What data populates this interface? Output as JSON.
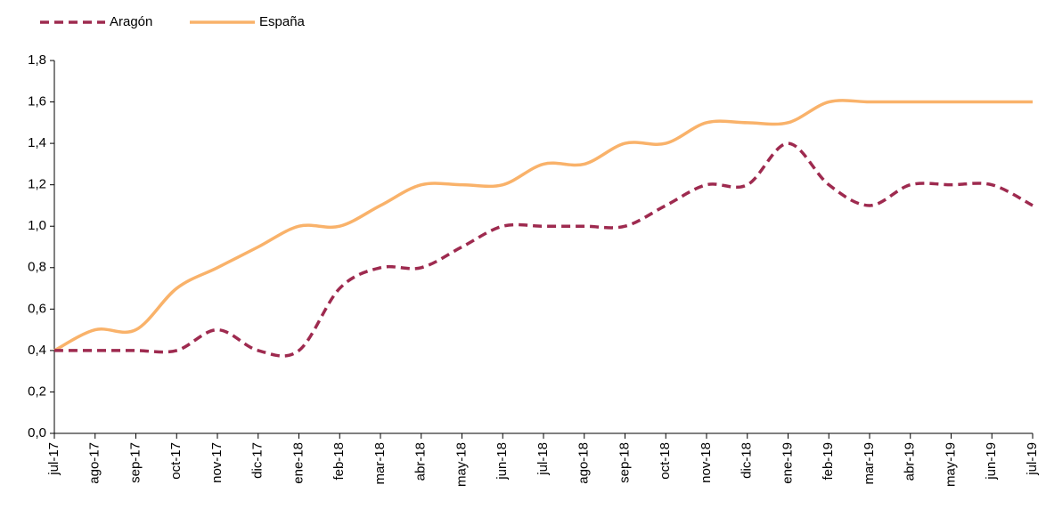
{
  "chart_data": {
    "type": "line",
    "categories": [
      "jul-17",
      "ago-17",
      "sep-17",
      "oct-17",
      "nov-17",
      "dic-17",
      "ene-18",
      "feb-18",
      "mar-18",
      "abr-18",
      "may-18",
      "jun-18",
      "jul-18",
      "ago-18",
      "sep-18",
      "oct-18",
      "nov-18",
      "dic-18",
      "ene-19",
      "feb-19",
      "mar-19",
      "abr-19",
      "may-19",
      "jun-19",
      "jul-19"
    ],
    "series": [
      {
        "name": "Aragón",
        "color": "#9e2a4f",
        "dashed": true,
        "values": [
          0.4,
          0.4,
          0.4,
          0.4,
          0.5,
          0.4,
          0.4,
          0.7,
          0.8,
          0.8,
          0.9,
          1.0,
          1.0,
          1.0,
          1.0,
          1.1,
          1.2,
          1.2,
          1.4,
          1.2,
          1.1,
          1.2,
          1.2,
          1.2,
          1.1
        ]
      },
      {
        "name": "España",
        "color": "#f9b26a",
        "dashed": false,
        "values": [
          0.4,
          0.5,
          0.5,
          0.7,
          0.8,
          0.9,
          1.0,
          1.0,
          1.1,
          1.2,
          1.2,
          1.2,
          1.3,
          1.3,
          1.4,
          1.4,
          1.5,
          1.5,
          1.5,
          1.6,
          1.6,
          1.6,
          1.6,
          1.6,
          1.6
        ]
      }
    ],
    "ylim": [
      0,
      1.8
    ],
    "yticks": [
      {
        "value": 0,
        "label": "0,0"
      },
      {
        "value": 0.2,
        "label": "0,2"
      },
      {
        "value": 0.4,
        "label": "0,4"
      },
      {
        "value": 0.6,
        "label": "0,6"
      },
      {
        "value": 0.8,
        "label": "0,8"
      },
      {
        "value": 1.0,
        "label": "1,0"
      },
      {
        "value": 1.2,
        "label": "1,2"
      },
      {
        "value": 1.4,
        "label": "1,4"
      },
      {
        "value": 1.6,
        "label": "1,6"
      },
      {
        "value": 1.8,
        "label": "1,8"
      }
    ],
    "grid": false,
    "legend": "top-left",
    "smooth": true
  }
}
